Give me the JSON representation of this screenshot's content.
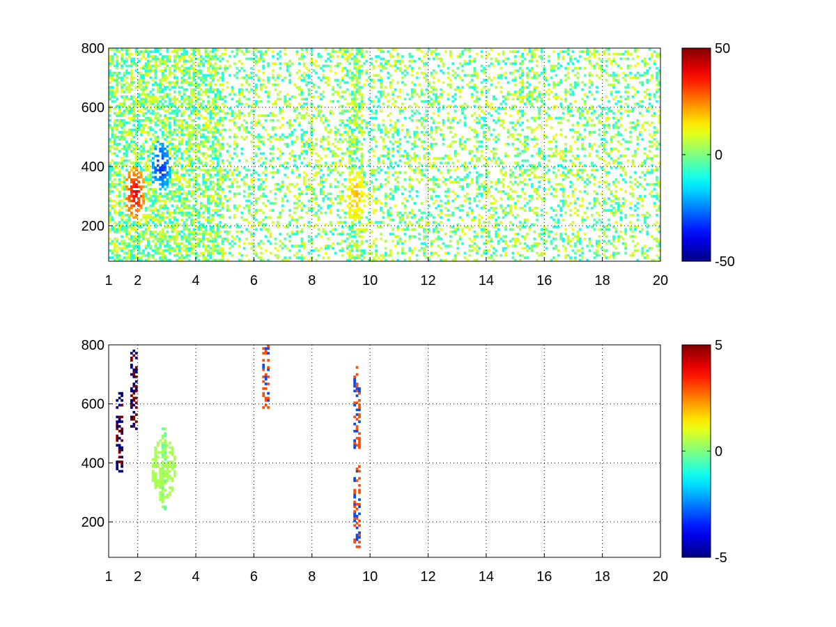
{
  "chart_data": [
    {
      "type": "heatmap",
      "title": "",
      "xlabel": "",
      "ylabel": "",
      "xlim": [
        1,
        20
      ],
      "ylim": [
        80,
        800
      ],
      "xticks": [
        "1",
        "2",
        "4",
        "6",
        "8",
        "10",
        "12",
        "14",
        "16",
        "18",
        "20"
      ],
      "yticks": [
        "200",
        "400",
        "600",
        "800"
      ],
      "grid": true,
      "colormap": "jet",
      "colorbar": {
        "min": -50,
        "max": 50,
        "ticks": [
          "50",
          "0",
          "-50"
        ]
      },
      "features": [
        {
          "x": 1.9,
          "y": 310,
          "value": 40
        },
        {
          "x": 2.8,
          "y": 400,
          "value": -35
        },
        {
          "x": 9.5,
          "y": 300,
          "value": 20
        }
      ]
    },
    {
      "type": "heatmap",
      "title": "",
      "xlabel": "",
      "ylabel": "",
      "xlim": [
        1,
        20
      ],
      "ylim": [
        80,
        800
      ],
      "xticks": [
        "1",
        "2",
        "4",
        "6",
        "8",
        "10",
        "12",
        "14",
        "16",
        "18",
        "20"
      ],
      "yticks": [
        "200",
        "400",
        "600",
        "800"
      ],
      "grid": true,
      "colormap": "jet",
      "colorbar": {
        "min": -5,
        "max": 5,
        "ticks": [
          "5",
          "0",
          "-5"
        ]
      },
      "features": [
        {
          "x": 1.4,
          "y": 500,
          "value": 5
        },
        {
          "x": 1.9,
          "y": 650,
          "value": 5
        },
        {
          "x": 2.9,
          "y": 380,
          "value": 0.3
        },
        {
          "x": 6.4,
          "y": 720,
          "value": 3
        },
        {
          "x": 9.55,
          "y": 590,
          "value": -3
        },
        {
          "x": 9.55,
          "y": 250,
          "value": 3
        }
      ]
    }
  ]
}
